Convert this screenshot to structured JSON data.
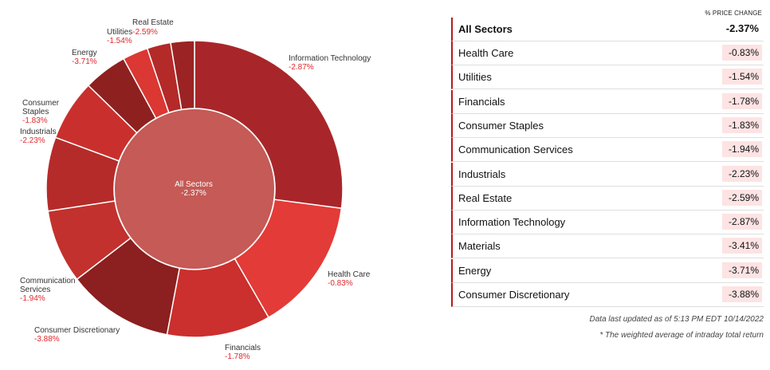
{
  "chart_data": {
    "type": "donut",
    "center": {
      "label": "All Sectors",
      "value": "-2.37%"
    },
    "segments": [
      {
        "name": "Information Technology",
        "value": "-2.87%",
        "weight": 27.3,
        "color": "#a8262a"
      },
      {
        "name": "Health Care",
        "value": "-0.83%",
        "weight": 14.7,
        "color": "#e33b37"
      },
      {
        "name": "Financials",
        "value": "-1.78%",
        "weight": 11.4,
        "color": "#cb2f2e"
      },
      {
        "name": "Consumer Discretionary",
        "value": "-3.88%",
        "weight": 11.7,
        "color": "#8c1f1f"
      },
      {
        "name": "Communication Services",
        "value": "-1.94%",
        "weight": 8.1,
        "color": "#c2312d"
      },
      {
        "name": "Industrials",
        "value": "-2.23%",
        "weight": 8.1,
        "color": "#b52b2a"
      },
      {
        "name": "Consumer Staples",
        "value": "-1.83%",
        "weight": 6.7,
        "color": "#c9302d"
      },
      {
        "name": "Energy",
        "value": "-3.71%",
        "weight": 4.8,
        "color": "#8f2020"
      },
      {
        "name": "Utilities",
        "value": "-1.54%",
        "weight": 2.8,
        "color": "#db3733"
      },
      {
        "name": "Real Estate",
        "value": "-2.59%",
        "weight": 2.6,
        "color": "#b32a29"
      },
      {
        "name": "Materials",
        "value": "-3.41%",
        "weight": 2.6,
        "color": "#9b2323"
      }
    ],
    "center_color": "#c55a56"
  },
  "labels": {
    "it": {
      "name": "Information Technology",
      "value": "-2.87%"
    },
    "hc": {
      "name": "Health Care",
      "value": "-0.83%"
    },
    "fin": {
      "name": "Financials",
      "value": "-1.78%"
    },
    "cd": {
      "name": "Consumer Discretionary",
      "value": "-3.88%"
    },
    "cs1": {
      "name": "Communication",
      "name2": "Services",
      "value": "-1.94%"
    },
    "ind": {
      "name": "Industrials",
      "value": "-2.23%"
    },
    "stap": {
      "name": "Consumer",
      "name2": "Staples",
      "value": "-1.83%"
    },
    "en": {
      "name": "Energy",
      "value": "-3.71%"
    },
    "ut": {
      "name": "Utilities",
      "value": "-1.54%"
    },
    "re": {
      "name": "Real Estate",
      "value": "-2.59%"
    }
  },
  "table": {
    "header": "% PRICE CHANGE",
    "total": {
      "name": "All Sectors",
      "value": "-2.37%"
    },
    "rows": [
      {
        "name": "Health Care",
        "value": "-0.83%"
      },
      {
        "name": "Utilities",
        "value": "-1.54%"
      },
      {
        "name": "Financials",
        "value": "-1.78%"
      },
      {
        "name": "Consumer Staples",
        "value": "-1.83%"
      },
      {
        "name": "Communication Services",
        "value": "-1.94%"
      },
      {
        "name": "Industrials",
        "value": "-2.23%"
      },
      {
        "name": "Real Estate",
        "value": "-2.59%"
      },
      {
        "name": "Information Technology",
        "value": "-2.87%"
      },
      {
        "name": "Materials",
        "value": "-3.41%"
      },
      {
        "name": "Energy",
        "value": "-3.71%"
      },
      {
        "name": "Consumer Discretionary",
        "value": "-3.88%"
      }
    ]
  },
  "footnotes": {
    "updated": "Data last updated as of 5:13 PM EDT 10/14/2022",
    "note": "* The weighted average of intraday total return"
  }
}
